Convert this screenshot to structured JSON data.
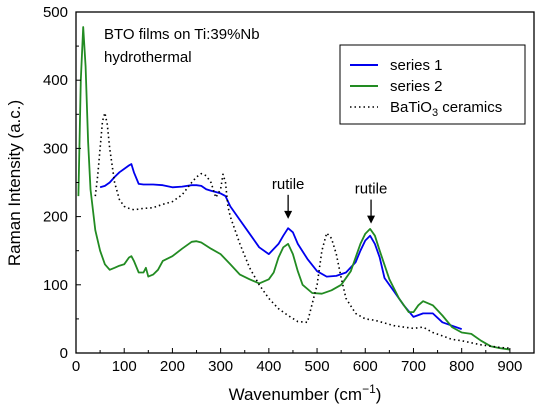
{
  "chart_data": {
    "type": "line",
    "title": "",
    "xlabel": "Wavenumber (cm",
    "xlabel_sup": "−1",
    "xlabel_close": ")",
    "ylabel": "Raman Intensity (a.c.)",
    "xlim": [
      0,
      950
    ],
    "ylim": [
      0,
      500
    ],
    "x_ticks": [
      0,
      100,
      200,
      300,
      400,
      500,
      600,
      700,
      800,
      900
    ],
    "y_ticks": [
      0,
      100,
      200,
      300,
      400,
      500
    ],
    "grid": false,
    "legend_position": "top-right",
    "annotation_text_lines": [
      "BTO films on Ti:39%Nb",
      "hydrothermal"
    ],
    "peak_labels": [
      {
        "text": "rutile",
        "x": 440,
        "y": 185
      },
      {
        "text": "rutile",
        "x": 612,
        "y": 178
      }
    ],
    "series": [
      {
        "name": "series 1",
        "color": "#0000ee",
        "style": "solid",
        "x": [
          50,
          60,
          70,
          80,
          90,
          100,
          110,
          115,
          120,
          130,
          140,
          160,
          180,
          200,
          220,
          240,
          250,
          260,
          270,
          280,
          290,
          300,
          310,
          320,
          340,
          360,
          380,
          400,
          420,
          430,
          440,
          450,
          460,
          480,
          500,
          520,
          540,
          560,
          580,
          590,
          600,
          610,
          620,
          630,
          640,
          660,
          680,
          700,
          720,
          740,
          760,
          780,
          800
        ],
        "y": [
          243,
          245,
          250,
          258,
          265,
          270,
          275,
          277,
          265,
          248,
          247,
          247,
          246,
          243,
          244,
          246,
          246,
          245,
          240,
          238,
          236,
          234,
          230,
          215,
          195,
          175,
          155,
          145,
          160,
          172,
          183,
          177,
          160,
          138,
          120,
          112,
          113,
          118,
          133,
          150,
          165,
          172,
          160,
          140,
          110,
          90,
          70,
          53,
          58,
          58,
          45,
          40,
          35
        ]
      },
      {
        "name": "series 2",
        "color": "#228b22",
        "style": "solid",
        "x": [
          5,
          10,
          15,
          20,
          25,
          30,
          40,
          50,
          60,
          70,
          80,
          90,
          100,
          110,
          115,
          120,
          130,
          140,
          145,
          150,
          160,
          170,
          180,
          200,
          220,
          240,
          250,
          260,
          280,
          300,
          320,
          340,
          360,
          380,
          400,
          410,
          420,
          430,
          440,
          450,
          460,
          470,
          490,
          510,
          530,
          550,
          570,
          580,
          590,
          600,
          610,
          620,
          630,
          650,
          670,
          690,
          700,
          710,
          720,
          740,
          760,
          780,
          800,
          820,
          840,
          860,
          880,
          900
        ],
        "y": [
          230,
          400,
          478,
          420,
          310,
          240,
          180,
          150,
          130,
          122,
          125,
          128,
          130,
          140,
          142,
          135,
          118,
          118,
          125,
          112,
          115,
          122,
          135,
          142,
          153,
          163,
          164,
          162,
          153,
          145,
          130,
          115,
          108,
          102,
          108,
          118,
          140,
          155,
          160,
          145,
          120,
          100,
          88,
          87,
          92,
          100,
          120,
          140,
          160,
          175,
          182,
          172,
          150,
          108,
          80,
          60,
          60,
          70,
          76,
          70,
          55,
          38,
          30,
          28,
          18,
          10,
          7,
          5
        ]
      },
      {
        "name": "BaTiO3 ceramics",
        "legend_main": "BaTiO",
        "legend_sub": "3",
        "legend_tail": " ceramics",
        "color": "#000000",
        "style": "dotted",
        "x": [
          40,
          45,
          50,
          55,
          60,
          65,
          70,
          80,
          90,
          100,
          110,
          120,
          140,
          160,
          180,
          200,
          220,
          240,
          250,
          260,
          270,
          280,
          290,
          300,
          305,
          310,
          315,
          320,
          340,
          360,
          380,
          400,
          420,
          440,
          460,
          480,
          500,
          510,
          520,
          530,
          540,
          550,
          560,
          580,
          600,
          620,
          640,
          660,
          680,
          700,
          720,
          740,
          760,
          780,
          800,
          820,
          840,
          860,
          880,
          900
        ],
        "y": [
          230,
          260,
          300,
          340,
          352,
          335,
          300,
          250,
          225,
          215,
          212,
          210,
          212,
          213,
          218,
          222,
          232,
          250,
          258,
          263,
          260,
          250,
          228,
          240,
          262,
          250,
          215,
          200,
          160,
          125,
          100,
          80,
          65,
          55,
          46,
          45,
          100,
          150,
          176,
          168,
          145,
          110,
          80,
          58,
          50,
          48,
          44,
          40,
          38,
          36,
          38,
          30,
          25,
          20,
          18,
          15,
          12,
          10,
          8,
          7
        ]
      }
    ]
  }
}
